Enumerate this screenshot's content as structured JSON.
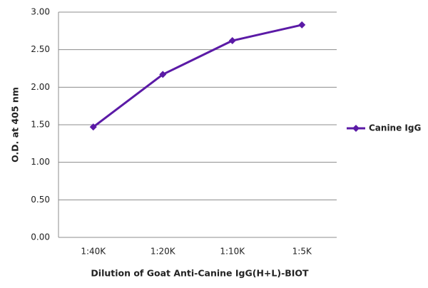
{
  "chart_data": {
    "type": "line",
    "x_label": "Dilution of Goat Anti-Canine IgG(H+L)-BIOT",
    "y_label": "O.D. at 405 nm",
    "categories": [
      "1:40K",
      "1:20K",
      "1:10K",
      "1:5K"
    ],
    "series": [
      {
        "name": "Canine IgG",
        "color": "#5b1aa6",
        "values": [
          1.47,
          2.17,
          2.62,
          2.83
        ]
      }
    ],
    "ylim": [
      0,
      3
    ],
    "yticks": [
      {
        "value": 0,
        "label": "0.00"
      },
      {
        "value": 0.5,
        "label": "0.50"
      },
      {
        "value": 1,
        "label": "1.00"
      },
      {
        "value": 1.5,
        "label": "1.50"
      },
      {
        "value": 2,
        "label": "2.00"
      },
      {
        "value": 2.5,
        "label": "2.50"
      },
      {
        "value": 3,
        "label": "3.00"
      }
    ],
    "grid": true,
    "legend": "right"
  }
}
